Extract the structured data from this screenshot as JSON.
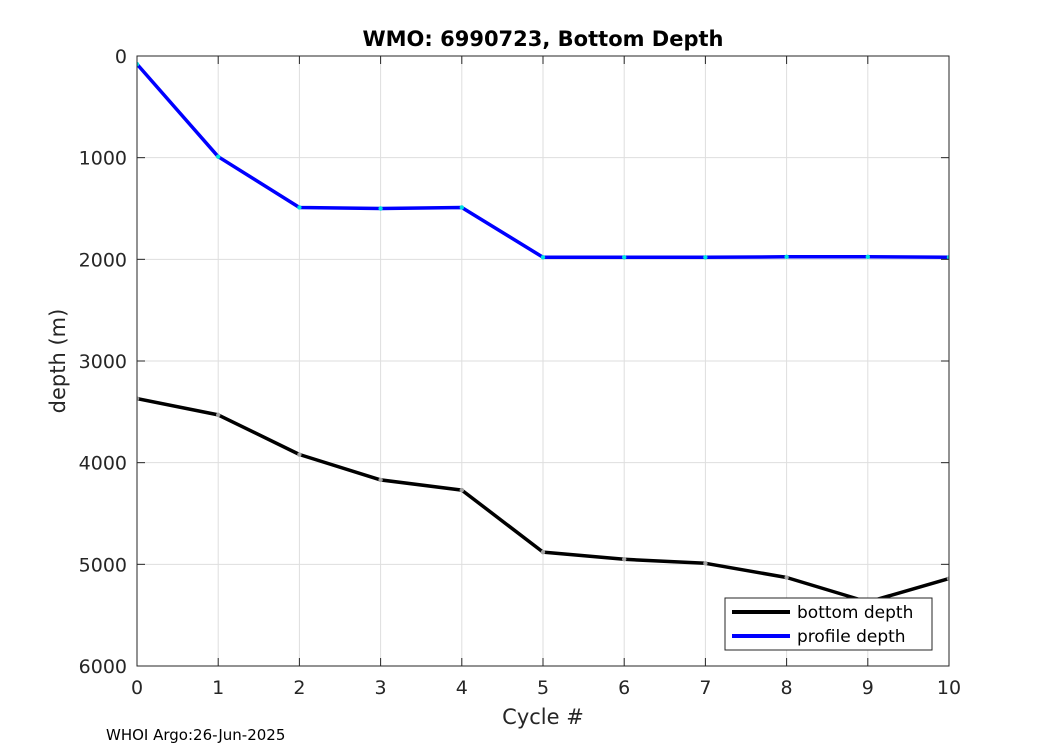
{
  "chart_data": {
    "type": "line",
    "title": "WMO: 6990723, Bottom Depth",
    "xlabel": "Cycle #",
    "ylabel": "depth (m)",
    "xlim": [
      0,
      10
    ],
    "ylim": [
      0,
      6000
    ],
    "y_reversed": true,
    "grid": true,
    "x_ticks": [
      0,
      1,
      2,
      3,
      4,
      5,
      6,
      7,
      8,
      9,
      10
    ],
    "y_ticks": [
      0,
      1000,
      2000,
      3000,
      4000,
      5000,
      6000
    ],
    "legend_position": "bottom-right",
    "series": [
      {
        "name": "bottom depth",
        "color": "#000000",
        "marker_color": "#a0a0a0",
        "x": [
          0,
          1,
          2,
          3,
          4,
          5,
          6,
          7,
          8,
          9,
          10
        ],
        "y": [
          3370,
          3530,
          3920,
          4170,
          4270,
          4880,
          4950,
          4990,
          5130,
          5370,
          5140
        ]
      },
      {
        "name": "profile depth",
        "color": "#0000ff",
        "marker_color": "#00e0e0",
        "x": [
          0,
          1,
          2,
          3,
          4,
          5,
          6,
          7,
          8,
          9,
          10
        ],
        "y": [
          80,
          990,
          1490,
          1500,
          1490,
          1980,
          1980,
          1980,
          1975,
          1975,
          1980
        ]
      }
    ]
  },
  "footer": {
    "text": "WHOI Argo:26-Jun-2025"
  }
}
